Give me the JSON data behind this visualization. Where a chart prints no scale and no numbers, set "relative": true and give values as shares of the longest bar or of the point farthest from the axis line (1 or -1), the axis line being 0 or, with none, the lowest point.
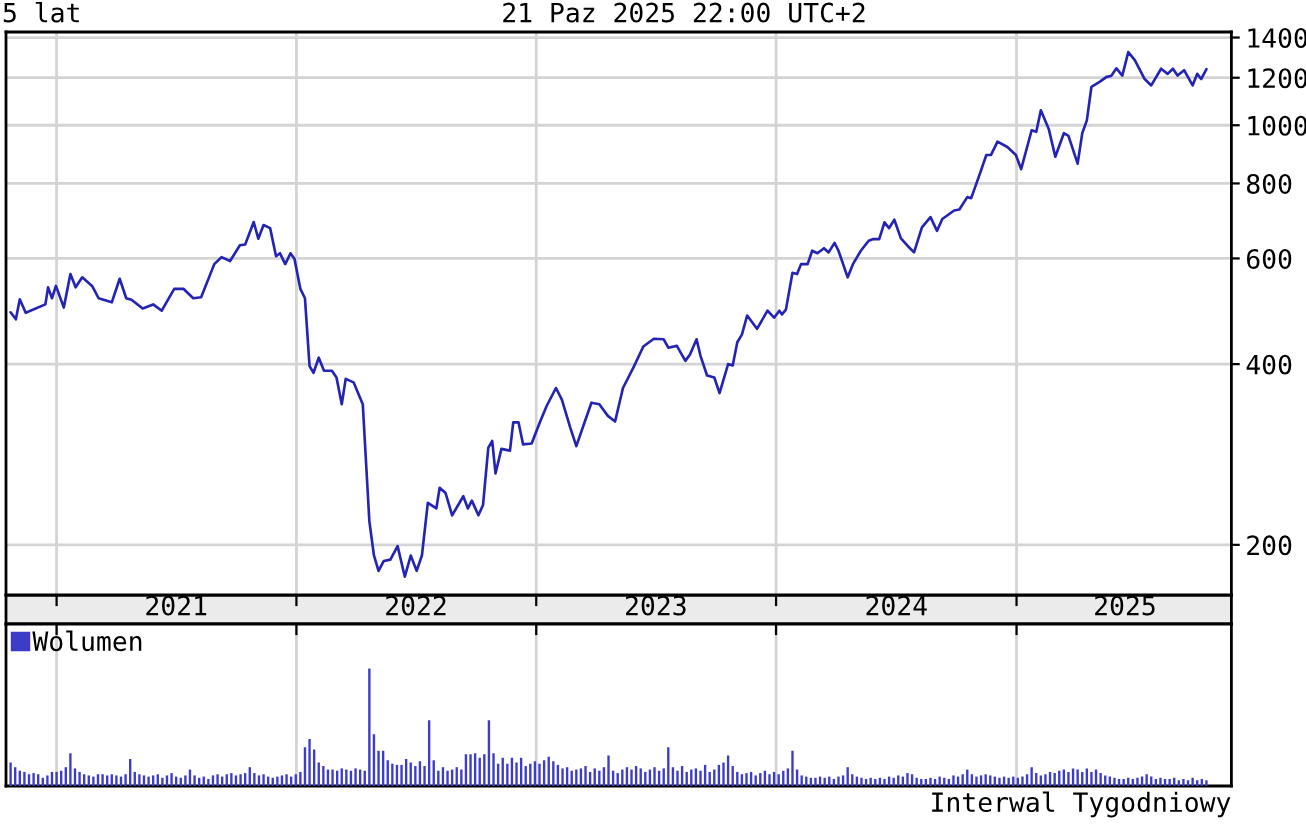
{
  "chart_data": [
    {
      "type": "line",
      "title": "5 lat",
      "subtitle": "21 Paz 2025 22:00 UTC+2",
      "log": true,
      "grid": true,
      "line_style": "solid",
      "tick_labels": "y",
      "xlim": [
        "2020-10-16",
        "2025-11-24"
      ],
      "xticks": [
        {
          "value": "2021-01-01",
          "label": null
        },
        {
          "value": "2022-01-01",
          "label": null
        },
        {
          "value": "2023-01-01",
          "label": null
        },
        {
          "value": "2024-01-01",
          "label": null
        },
        {
          "value": "2025-01-01",
          "label": null
        }
      ],
      "ylim": [
        165,
        1430
      ],
      "yticks": [
        200,
        400,
        600,
        800,
        1000,
        1200,
        1400
      ],
      "series": [
        {
          "color": "#2424b4",
          "x": [
            "2020-10-23",
            "2020-10-31",
            "2020-11-06",
            "2020-11-15",
            "2020-12-15",
            "2020-12-19",
            "2020-12-25",
            "2020-12-31",
            "2021-01-12",
            "2021-01-22",
            "2021-01-30",
            "2021-02-09",
            "2021-02-24",
            "2021-03-06",
            "2021-03-26",
            "2021-04-07",
            "2021-04-17",
            "2021-04-25",
            "2021-05-12",
            "2021-05-28",
            "2021-06-10",
            "2021-06-29",
            "2021-07-13",
            "2021-07-28",
            "2021-08-09",
            "2021-08-29",
            "2021-09-09",
            "2021-09-22",
            "2021-10-07",
            "2021-10-15",
            "2021-10-28",
            "2021-11-04",
            "2021-11-12",
            "2021-11-22",
            "2021-12-01",
            "2021-12-07",
            "2021-12-15",
            "2021-12-23",
            "2021-12-29",
            "2022-01-07",
            "2022-01-14",
            "2022-01-21",
            "2022-01-27",
            "2022-02-04",
            "2022-02-12",
            "2022-02-24",
            "2022-03-03",
            "2022-03-11",
            "2022-03-17",
            "2022-03-29",
            "2022-04-12",
            "2022-04-22",
            "2022-04-29",
            "2022-05-06",
            "2022-05-14",
            "2022-05-24",
            "2022-06-04",
            "2022-06-15",
            "2022-06-24",
            "2022-07-03",
            "2022-07-11",
            "2022-07-20",
            "2022-08-02",
            "2022-08-07",
            "2022-08-16",
            "2022-08-26",
            "2022-09-12",
            "2022-09-19",
            "2022-09-25",
            "2022-10-05",
            "2022-10-12",
            "2022-10-20",
            "2022-10-26",
            "2022-10-31",
            "2022-11-09",
            "2022-11-22",
            "2022-11-27",
            "2022-12-05",
            "2022-12-12",
            "2022-12-25",
            "2023-01-07",
            "2023-01-17",
            "2023-01-31",
            "2023-02-09",
            "2023-02-22",
            "2023-03-03",
            "2023-03-16",
            "2023-03-26",
            "2023-04-07",
            "2023-04-20",
            "2023-05-01",
            "2023-05-13",
            "2023-05-29",
            "2023-06-13",
            "2023-06-29",
            "2023-07-14",
            "2023-07-21",
            "2023-08-03",
            "2023-08-16",
            "2023-08-23",
            "2023-09-02",
            "2023-09-08",
            "2023-09-18",
            "2023-09-29",
            "2023-10-07",
            "2023-10-20",
            "2023-10-27",
            "2023-11-03",
            "2023-11-10",
            "2023-11-18",
            "2023-12-03",
            "2023-12-19",
            "2023-12-29",
            "2024-01-06",
            "2024-01-10",
            "2024-01-16",
            "2024-01-26",
            "2024-02-02",
            "2024-02-08",
            "2024-02-18",
            "2024-02-25",
            "2024-03-04",
            "2024-03-14",
            "2024-03-21",
            "2024-03-30",
            "2024-04-05",
            "2024-04-19",
            "2024-04-27",
            "2024-05-09",
            "2024-05-21",
            "2024-05-27",
            "2024-06-06",
            "2024-06-14",
            "2024-06-21",
            "2024-06-29",
            "2024-07-09",
            "2024-07-19",
            "2024-07-29",
            "2024-08-10",
            "2024-08-23",
            "2024-09-02",
            "2024-09-10",
            "2024-09-28",
            "2024-10-06",
            "2024-10-18",
            "2024-10-24",
            "2024-11-08",
            "2024-11-16",
            "2024-11-23",
            "2024-12-03",
            "2024-12-18",
            "2024-12-31",
            "2025-01-08",
            "2025-01-24",
            "2025-01-31",
            "2025-02-07",
            "2025-02-19",
            "2025-03-01",
            "2025-03-14",
            "2025-03-21",
            "2025-04-04",
            "2025-04-11",
            "2025-04-18",
            "2025-04-25",
            "2025-05-08",
            "2025-05-18",
            "2025-05-25",
            "2025-06-02",
            "2025-06-11",
            "2025-06-20",
            "2025-06-30",
            "2025-07-15",
            "2025-07-25",
            "2025-08-09",
            "2025-08-19",
            "2025-08-27",
            "2025-09-03",
            "2025-09-13",
            "2025-09-26",
            "2025-10-03",
            "2025-10-09",
            "2025-10-17"
          ],
          "values": [
            488,
            475,
            513,
            487,
            503,
            537,
            515,
            540,
            497,
            565,
            537,
            558,
            540,
            515,
            507,
            555,
            515,
            512,
            495,
            503,
            491,
            534,
            534,
            515,
            517,
            587,
            603,
            594,
            631,
            633,
            690,
            647,
            682,
            674,
            605,
            612,
            587,
            612,
            599,
            534,
            515,
            397,
            387,
            410,
            390,
            390,
            380,
            343,
            378,
            373,
            343,
            219,
            192,
            181,
            188,
            189,
            199,
            177,
            192,
            181,
            192,
            235,
            230,
            249,
            244,
            224,
            241,
            230,
            237,
            224,
            233,
            290,
            298,
            263,
            289,
            287,
            320,
            320,
            294,
            295,
            321,
            341,
            365,
            349,
            313,
            292,
            321,
            345,
            343,
            328,
            321,
            365,
            395,
            428,
            441,
            440,
            426,
            429,
            405,
            415,
            440,
            413,
            383,
            380,
            358,
            400,
            398,
            435,
            448,
            482,
            458,
            491,
            478,
            491,
            484,
            493,
            568,
            565,
            587,
            587,
            618,
            612,
            624,
            614,
            637,
            618,
            558,
            587,
            618,
            642,
            646,
            646,
            689,
            674,
            696,
            648,
            630,
            614,
            676,
            703,
            667,
            698,
            721,
            724,
            759,
            756,
            841,
            892,
            892,
            939,
            920,
            892,
            845,
            981,
            975,
            1059,
            986,
            886,
            970,
            960,
            863,
            970,
            1019,
            1159,
            1182,
            1204,
            1208,
            1244,
            1210,
            1324,
            1284,
            1194,
            1165,
            1242,
            1218,
            1242,
            1210,
            1235,
            1165,
            1218,
            1194,
            1240
          ]
        }
      ]
    },
    {
      "type": "bar",
      "relative": true,
      "grid": "x",
      "legend": "top left",
      "annotations": [
        "Interwal Tygodniowy"
      ],
      "xlim": [
        "2020-10-16",
        "2025-11-24"
      ],
      "xticks": [
        {
          "value": "2021-01-01",
          "label": null
        },
        {
          "value": "2022-01-01",
          "label": null
        },
        {
          "value": "2023-01-01",
          "label": null
        },
        {
          "value": "2024-01-01",
          "label": null
        },
        {
          "value": "2025-01-01",
          "label": null
        },
        {
          "value": "2021-07-02",
          "label": "2021"
        },
        {
          "value": "2022-07-02",
          "label": "2022"
        },
        {
          "value": "2023-07-02",
          "label": "2023"
        },
        {
          "value": "2024-07-02",
          "label": "2024"
        },
        {
          "value": "2025-06-15",
          "label": "2025"
        }
      ],
      "series": [
        {
          "name": "Wolumen",
          "color": "#3c3cc8",
          "x": [
            "2020-10-23",
            "2020-10-30",
            "2020-11-06",
            "2020-11-13",
            "2020-11-20",
            "2020-11-27",
            "2020-12-04",
            "2020-12-11",
            "2020-12-18",
            "2020-12-25",
            "2021-01-01",
            "2021-01-08",
            "2021-01-15",
            "2021-01-22",
            "2021-01-29",
            "2021-02-05",
            "2021-02-12",
            "2021-02-19",
            "2021-02-26",
            "2021-03-05",
            "2021-03-12",
            "2021-03-19",
            "2021-03-26",
            "2021-04-02",
            "2021-04-09",
            "2021-04-16",
            "2021-04-23",
            "2021-04-30",
            "2021-05-07",
            "2021-05-14",
            "2021-05-21",
            "2021-05-28",
            "2021-06-04",
            "2021-06-11",
            "2021-06-18",
            "2021-06-25",
            "2021-07-02",
            "2021-07-09",
            "2021-07-16",
            "2021-07-23",
            "2021-07-30",
            "2021-08-06",
            "2021-08-13",
            "2021-08-20",
            "2021-08-27",
            "2021-09-03",
            "2021-09-10",
            "2021-09-17",
            "2021-09-24",
            "2021-10-01",
            "2021-10-08",
            "2021-10-15",
            "2021-10-22",
            "2021-10-29",
            "2021-11-05",
            "2021-11-12",
            "2021-11-19",
            "2021-11-26",
            "2021-12-03",
            "2021-12-10",
            "2021-12-17",
            "2021-12-24",
            "2021-12-31",
            "2022-01-07",
            "2022-01-14",
            "2022-01-21",
            "2022-01-28",
            "2022-02-04",
            "2022-02-11",
            "2022-02-18",
            "2022-02-25",
            "2022-03-04",
            "2022-03-11",
            "2022-03-18",
            "2022-03-25",
            "2022-04-01",
            "2022-04-08",
            "2022-04-15",
            "2022-04-22",
            "2022-04-29",
            "2022-05-06",
            "2022-05-13",
            "2022-05-20",
            "2022-05-27",
            "2022-06-03",
            "2022-06-10",
            "2022-06-17",
            "2022-06-24",
            "2022-07-01",
            "2022-07-08",
            "2022-07-15",
            "2022-07-22",
            "2022-07-29",
            "2022-08-05",
            "2022-08-12",
            "2022-08-19",
            "2022-08-26",
            "2022-09-02",
            "2022-09-09",
            "2022-09-16",
            "2022-09-23",
            "2022-09-30",
            "2022-10-07",
            "2022-10-14",
            "2022-10-21",
            "2022-10-28",
            "2022-11-04",
            "2022-11-11",
            "2022-11-18",
            "2022-11-25",
            "2022-12-02",
            "2022-12-09",
            "2022-12-16",
            "2022-12-23",
            "2022-12-30",
            "2023-01-06",
            "2023-01-13",
            "2023-01-20",
            "2023-01-27",
            "2023-02-03",
            "2023-02-10",
            "2023-02-17",
            "2023-02-24",
            "2023-03-03",
            "2023-03-10",
            "2023-03-17",
            "2023-03-24",
            "2023-03-31",
            "2023-04-07",
            "2023-04-14",
            "2023-04-21",
            "2023-04-28",
            "2023-05-05",
            "2023-05-12",
            "2023-05-19",
            "2023-05-26",
            "2023-06-02",
            "2023-06-09",
            "2023-06-16",
            "2023-06-23",
            "2023-06-30",
            "2023-07-07",
            "2023-07-14",
            "2023-07-21",
            "2023-07-28",
            "2023-08-04",
            "2023-08-11",
            "2023-08-18",
            "2023-08-25",
            "2023-09-01",
            "2023-09-08",
            "2023-09-15",
            "2023-09-22",
            "2023-09-29",
            "2023-10-06",
            "2023-10-13",
            "2023-10-20",
            "2023-10-27",
            "2023-11-03",
            "2023-11-10",
            "2023-11-17",
            "2023-11-24",
            "2023-12-01",
            "2023-12-08",
            "2023-12-15",
            "2023-12-22",
            "2023-12-29",
            "2024-01-05",
            "2024-01-12",
            "2024-01-19",
            "2024-01-26",
            "2024-02-02",
            "2024-02-09",
            "2024-02-16",
            "2024-02-23",
            "2024-03-01",
            "2024-03-08",
            "2024-03-15",
            "2024-03-22",
            "2024-03-29",
            "2024-04-05",
            "2024-04-12",
            "2024-04-19",
            "2024-04-26",
            "2024-05-03",
            "2024-05-10",
            "2024-05-17",
            "2024-05-24",
            "2024-05-31",
            "2024-06-07",
            "2024-06-14",
            "2024-06-21",
            "2024-06-28",
            "2024-07-05",
            "2024-07-12",
            "2024-07-19",
            "2024-07-26",
            "2024-08-02",
            "2024-08-09",
            "2024-08-16",
            "2024-08-23",
            "2024-08-30",
            "2024-09-06",
            "2024-09-13",
            "2024-09-20",
            "2024-09-27",
            "2024-10-04",
            "2024-10-11",
            "2024-10-18",
            "2024-10-25",
            "2024-11-01",
            "2024-11-08",
            "2024-11-15",
            "2024-11-22",
            "2024-11-29",
            "2024-12-06",
            "2024-12-13",
            "2024-12-20",
            "2024-12-27",
            "2025-01-03",
            "2025-01-10",
            "2025-01-17",
            "2025-01-24",
            "2025-01-31",
            "2025-02-07",
            "2025-02-14",
            "2025-02-21",
            "2025-02-28",
            "2025-03-07",
            "2025-03-14",
            "2025-03-21",
            "2025-03-28",
            "2025-04-04",
            "2025-04-11",
            "2025-04-18",
            "2025-04-25",
            "2025-05-02",
            "2025-05-09",
            "2025-05-16",
            "2025-05-23",
            "2025-05-30",
            "2025-06-06",
            "2025-06-13",
            "2025-06-20",
            "2025-06-27",
            "2025-07-04",
            "2025-07-11",
            "2025-07-18",
            "2025-07-25",
            "2025-08-01",
            "2025-08-08",
            "2025-08-15",
            "2025-08-22",
            "2025-08-29",
            "2025-09-05",
            "2025-09-12",
            "2025-09-19",
            "2025-09-26",
            "2025-10-03",
            "2025-10-10",
            "2025-10-17"
          ],
          "values": [
            0.2,
            0.16,
            0.13,
            0.12,
            0.1,
            0.11,
            0.1,
            0.07,
            0.09,
            0.12,
            0.12,
            0.13,
            0.16,
            0.28,
            0.15,
            0.12,
            0.1,
            0.09,
            0.08,
            0.1,
            0.1,
            0.09,
            0.1,
            0.09,
            0.08,
            0.1,
            0.23,
            0.12,
            0.1,
            0.09,
            0.08,
            0.09,
            0.1,
            0.07,
            0.09,
            0.11,
            0.08,
            0.07,
            0.09,
            0.14,
            0.09,
            0.07,
            0.08,
            0.06,
            0.09,
            0.1,
            0.08,
            0.1,
            0.11,
            0.09,
            0.1,
            0.11,
            0.16,
            0.11,
            0.09,
            0.1,
            0.08,
            0.07,
            0.08,
            0.09,
            0.1,
            0.08,
            0.1,
            0.12,
            0.33,
            0.4,
            0.31,
            0.2,
            0.17,
            0.14,
            0.14,
            0.13,
            0.15,
            0.14,
            0.13,
            0.15,
            0.14,
            0.13,
            1.0,
            0.44,
            0.3,
            0.3,
            0.22,
            0.19,
            0.18,
            0.18,
            0.23,
            0.2,
            0.17,
            0.21,
            0.17,
            0.56,
            0.22,
            0.13,
            0.16,
            0.13,
            0.14,
            0.16,
            0.14,
            0.27,
            0.27,
            0.28,
            0.24,
            0.27,
            0.56,
            0.28,
            0.19,
            0.24,
            0.19,
            0.24,
            0.2,
            0.24,
            0.17,
            0.19,
            0.21,
            0.19,
            0.22,
            0.25,
            0.21,
            0.18,
            0.15,
            0.16,
            0.13,
            0.14,
            0.15,
            0.17,
            0.12,
            0.15,
            0.13,
            0.16,
            0.26,
            0.13,
            0.11,
            0.14,
            0.16,
            0.14,
            0.17,
            0.15,
            0.12,
            0.14,
            0.16,
            0.13,
            0.15,
            0.33,
            0.16,
            0.13,
            0.17,
            0.12,
            0.14,
            0.15,
            0.13,
            0.18,
            0.12,
            0.14,
            0.18,
            0.2,
            0.26,
            0.17,
            0.12,
            0.1,
            0.11,
            0.12,
            0.09,
            0.11,
            0.13,
            0.1,
            0.12,
            0.1,
            0.13,
            0.15,
            0.3,
            0.14,
            0.09,
            0.08,
            0.07,
            0.07,
            0.08,
            0.07,
            0.08,
            0.06,
            0.08,
            0.09,
            0.16,
            0.1,
            0.08,
            0.07,
            0.06,
            0.07,
            0.06,
            0.07,
            0.06,
            0.08,
            0.07,
            0.09,
            0.08,
            0.11,
            0.1,
            0.07,
            0.06,
            0.06,
            0.07,
            0.06,
            0.08,
            0.07,
            0.06,
            0.09,
            0.08,
            0.1,
            0.14,
            0.1,
            0.08,
            0.09,
            0.1,
            0.09,
            0.08,
            0.07,
            0.08,
            0.07,
            0.08,
            0.07,
            0.08,
            0.1,
            0.16,
            0.11,
            0.09,
            0.1,
            0.12,
            0.11,
            0.13,
            0.14,
            0.12,
            0.15,
            0.14,
            0.12,
            0.15,
            0.12,
            0.14,
            0.11,
            0.09,
            0.08,
            0.07,
            0.06,
            0.06,
            0.07,
            0.06,
            0.07,
            0.08,
            0.1,
            0.08,
            0.06,
            0.07,
            0.06,
            0.06,
            0.07,
            0.05,
            0.06,
            0.05,
            0.07,
            0.05,
            0.06,
            0.05
          ]
        }
      ]
    }
  ]
}
